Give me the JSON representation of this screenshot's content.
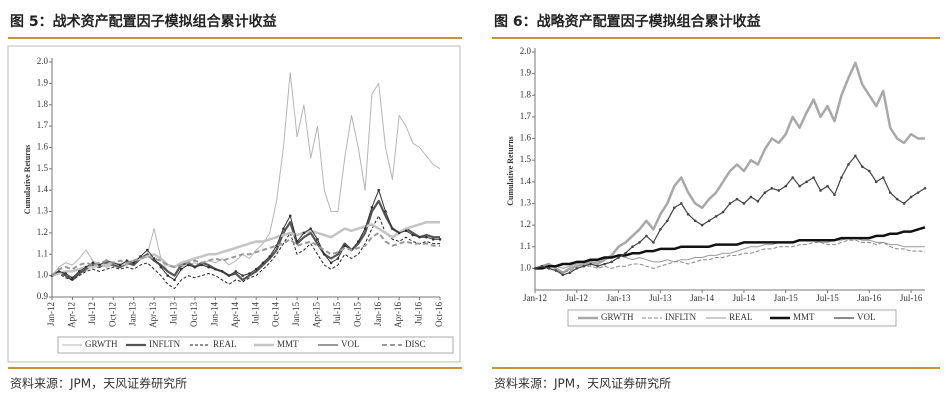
{
  "chart_data": [
    {
      "type": "line",
      "title": "图 5：战术资产配置因子模拟组合累计收益",
      "source": "资料来源：JPM，天风证券研究所",
      "y_label": "Cumulative Returns",
      "categories": [
        "Jan-12",
        null,
        null,
        "Apr-12",
        null,
        null,
        "Jul-12",
        null,
        null,
        "Oct-12",
        null,
        null,
        "Jan-13",
        null,
        null,
        "Apr-13",
        null,
        null,
        "Jul-13",
        null,
        null,
        "Oct-13",
        null,
        null,
        "Jan-14",
        null,
        null,
        "Apr-14",
        null,
        null,
        "Jul-14",
        null,
        null,
        "Oct-14",
        null,
        null,
        "Jan-15",
        null,
        null,
        "Apr-15",
        null,
        null,
        "Jul-15",
        null,
        null,
        "Oct-15",
        null,
        null,
        "Jan-16",
        null,
        null,
        "Apr-16",
        null,
        null,
        "Jul-16",
        null,
        null,
        "Oct-16"
      ],
      "ylim": [
        0.9,
        2.0
      ],
      "yticks": [
        0.9,
        {
          "value": 1.0,
          "label": "1.0"
        },
        1.1,
        1.2,
        1.3,
        1.4,
        1.5,
        1.6,
        1.7,
        1.8,
        1.9,
        {
          "value": 2.0,
          "label": "2.0"
        }
      ],
      "series": [
        {
          "name": "GRWTH",
          "color": "#b5b5b5",
          "width": 1,
          "dash": "none",
          "values": [
            1.0,
            1.04,
            1.06,
            1.05,
            1.08,
            1.12,
            1.07,
            1.05,
            1.04,
            1.05,
            1.04,
            1.05,
            1.06,
            1.08,
            1.1,
            1.22,
            1.08,
            1.02,
            1.0,
            1.04,
            1.05,
            1.06,
            1.05,
            1.07,
            1.06,
            1.08,
            1.05,
            1.07,
            1.1,
            1.08,
            1.12,
            1.15,
            1.2,
            1.35,
            1.6,
            1.95,
            1.65,
            1.8,
            1.55,
            1.7,
            1.4,
            1.3,
            1.3,
            1.55,
            1.75,
            1.6,
            1.4,
            1.85,
            1.9,
            1.6,
            1.45,
            1.75,
            1.7,
            1.62,
            1.6,
            1.56,
            1.52,
            1.5
          ]
        },
        {
          "name": "INFLTN",
          "color": "#555555",
          "width": 2.2,
          "dash": "none",
          "values": [
            1.0,
            1.02,
            1.0,
            0.98,
            1.01,
            1.03,
            1.05,
            1.04,
            1.06,
            1.05,
            1.04,
            1.06,
            1.05,
            1.08,
            1.1,
            1.07,
            1.05,
            1.02,
            1.0,
            1.05,
            1.06,
            1.04,
            1.06,
            1.05,
            1.03,
            1.02,
            1.0,
            1.01,
            0.98,
            1.0,
            1.02,
            1.05,
            1.08,
            1.12,
            1.2,
            1.25,
            1.15,
            1.18,
            1.2,
            1.15,
            1.1,
            1.08,
            1.1,
            1.15,
            1.12,
            1.15,
            1.2,
            1.3,
            1.35,
            1.28,
            1.22,
            1.2,
            1.22,
            1.2,
            1.18,
            1.19,
            1.18,
            1.18
          ]
        },
        {
          "name": "REAL",
          "color": "#222222",
          "width": 1,
          "dash": "3,2",
          "values": [
            1.0,
            1.01,
            0.99,
            0.98,
            1.0,
            1.02,
            1.03,
            1.02,
            1.03,
            1.04,
            1.03,
            1.04,
            1.03,
            1.05,
            1.06,
            1.03,
            1.0,
            0.96,
            0.94,
            0.98,
            1.0,
            0.99,
            1.0,
            1.01,
            1.0,
            0.98,
            0.96,
            0.98,
            0.97,
            0.99,
            1.0,
            1.03,
            1.06,
            1.1,
            1.15,
            1.2,
            1.1,
            1.12,
            1.15,
            1.1,
            1.05,
            1.03,
            1.05,
            1.1,
            1.08,
            1.1,
            1.15,
            1.22,
            1.28,
            1.2,
            1.17,
            1.16,
            1.18,
            1.16,
            1.15,
            1.16,
            1.15,
            1.15
          ]
        },
        {
          "name": "MMT",
          "color": "#c4c4c4",
          "width": 2.5,
          "dash": "none",
          "values": [
            1.0,
            1.01,
            1.02,
            1.02,
            1.03,
            1.04,
            1.04,
            1.05,
            1.05,
            1.06,
            1.05,
            1.06,
            1.07,
            1.08,
            1.09,
            1.1,
            1.08,
            1.05,
            1.04,
            1.06,
            1.07,
            1.08,
            1.09,
            1.1,
            1.1,
            1.11,
            1.12,
            1.13,
            1.14,
            1.15,
            1.16,
            1.16,
            1.17,
            1.18,
            1.19,
            1.2,
            1.19,
            1.2,
            1.21,
            1.2,
            1.19,
            1.18,
            1.2,
            1.22,
            1.21,
            1.22,
            1.23,
            1.24,
            1.22,
            1.2,
            1.18,
            1.2,
            1.22,
            1.23,
            1.24,
            1.25,
            1.25,
            1.25
          ]
        },
        {
          "name": "VOL",
          "color": "#333333",
          "width": 1,
          "dash": "none",
          "marker": true,
          "values": [
            1.0,
            1.02,
            1.01,
            0.99,
            1.02,
            1.04,
            1.06,
            1.05,
            1.07,
            1.06,
            1.05,
            1.07,
            1.06,
            1.09,
            1.12,
            1.08,
            1.04,
            1.0,
            0.98,
            1.03,
            1.05,
            1.04,
            1.05,
            1.04,
            1.03,
            1.02,
            1.0,
            1.02,
            1.0,
            1.01,
            1.03,
            1.06,
            1.09,
            1.14,
            1.22,
            1.28,
            1.16,
            1.2,
            1.22,
            1.17,
            1.1,
            1.06,
            1.08,
            1.14,
            1.12,
            1.16,
            1.22,
            1.32,
            1.4,
            1.3,
            1.22,
            1.2,
            1.21,
            1.19,
            1.18,
            1.18,
            1.17,
            1.17
          ]
        },
        {
          "name": "DISC",
          "color": "#999999",
          "width": 2,
          "dash": "5,3",
          "values": [
            1.0,
            1.03,
            1.04,
            1.03,
            1.05,
            1.06,
            1.05,
            1.06,
            1.07,
            1.06,
            1.07,
            1.06,
            1.07,
            1.08,
            1.09,
            1.08,
            1.07,
            1.05,
            1.04,
            1.05,
            1.06,
            1.07,
            1.06,
            1.07,
            1.08,
            1.07,
            1.08,
            1.09,
            1.1,
            1.1,
            1.11,
            1.12,
            1.13,
            1.14,
            1.15,
            1.17,
            1.14,
            1.15,
            1.16,
            1.14,
            1.12,
            1.1,
            1.11,
            1.13,
            1.12,
            1.13,
            1.14,
            1.18,
            1.2,
            1.16,
            1.14,
            1.15,
            1.16,
            1.15,
            1.15,
            1.15,
            1.14,
            1.14
          ]
        }
      ]
    },
    {
      "type": "line",
      "title": "图 6：战略资产配置因子模拟组合累计收益",
      "source": "资料来源：JPM，天风证券研究所",
      "y_label": "Cumulative Returns",
      "categories": [
        "Jan-12",
        null,
        null,
        null,
        null,
        null,
        "Jul-12",
        null,
        null,
        null,
        null,
        null,
        "Jan-13",
        null,
        null,
        null,
        null,
        null,
        "Jul-13",
        null,
        null,
        null,
        null,
        null,
        "Jan-14",
        null,
        null,
        null,
        null,
        null,
        "Jul-14",
        null,
        null,
        null,
        null,
        null,
        "Jan-15",
        null,
        null,
        null,
        null,
        null,
        "Jul-15",
        null,
        null,
        null,
        null,
        null,
        "Jan-16",
        null,
        null,
        null,
        null,
        null,
        "Jul-16",
        null,
        null
      ],
      "ylim": [
        0.9,
        2.0
      ],
      "yticks": [
        {
          "value": 1.0,
          "label": "1.0"
        },
        1.1,
        1.2,
        1.3,
        1.4,
        1.5,
        1.6,
        1.7,
        1.8,
        1.9,
        {
          "value": 2.0,
          "label": "2.0"
        }
      ],
      "series": [
        {
          "name": "GRWTH",
          "color": "#a8a8a8",
          "width": 2.5,
          "dash": "none",
          "values": [
            1.0,
            1.01,
            1.02,
            1.0,
            0.98,
            1.0,
            1.01,
            1.02,
            1.03,
            1.02,
            1.04,
            1.06,
            1.1,
            1.12,
            1.15,
            1.18,
            1.22,
            1.18,
            1.25,
            1.3,
            1.38,
            1.42,
            1.35,
            1.3,
            1.28,
            1.32,
            1.35,
            1.4,
            1.45,
            1.48,
            1.45,
            1.5,
            1.48,
            1.55,
            1.6,
            1.58,
            1.62,
            1.7,
            1.65,
            1.72,
            1.78,
            1.7,
            1.75,
            1.68,
            1.8,
            1.88,
            1.95,
            1.85,
            1.8,
            1.75,
            1.82,
            1.65,
            1.6,
            1.58,
            1.62,
            1.6,
            1.6
          ]
        },
        {
          "name": "INFLTN",
          "color": "#888888",
          "width": 1,
          "dash": "4,2",
          "values": [
            1.0,
            1.0,
            1.0,
            0.99,
            0.98,
            0.99,
            1.0,
            1.01,
            1.01,
            1.0,
            1.01,
            1.0,
            1.01,
            1.01,
            1.02,
            1.02,
            1.01,
            1.0,
            1.01,
            1.02,
            1.03,
            1.03,
            1.02,
            1.03,
            1.04,
            1.04,
            1.05,
            1.05,
            1.06,
            1.06,
            1.07,
            1.07,
            1.08,
            1.09,
            1.09,
            1.1,
            1.1,
            1.1,
            1.11,
            1.11,
            1.12,
            1.12,
            1.11,
            1.11,
            1.12,
            1.13,
            1.13,
            1.12,
            1.12,
            1.11,
            1.12,
            1.1,
            1.09,
            1.09,
            1.08,
            1.08,
            1.08
          ]
        },
        {
          "name": "REAL",
          "color": "#999999",
          "width": 1,
          "dash": "none",
          "values": [
            1.0,
            1.01,
            1.02,
            1.01,
            1.0,
            1.01,
            1.02,
            1.03,
            1.04,
            1.03,
            1.04,
            1.05,
            1.06,
            1.05,
            1.04,
            1.05,
            1.04,
            1.03,
            1.03,
            1.04,
            1.03,
            1.04,
            1.04,
            1.05,
            1.05,
            1.06,
            1.06,
            1.07,
            1.07,
            1.08,
            1.09,
            1.1,
            1.1,
            1.11,
            1.11,
            1.12,
            1.12,
            1.12,
            1.13,
            1.13,
            1.13,
            1.12,
            1.12,
            1.13,
            1.13,
            1.14,
            1.14,
            1.13,
            1.13,
            1.12,
            1.12,
            1.11,
            1.11,
            1.1,
            1.1,
            1.1,
            1.1
          ]
        },
        {
          "name": "MMT",
          "color": "#111111",
          "width": 2.5,
          "dash": "none",
          "values": [
            1.0,
            1.0,
            1.01,
            1.01,
            1.02,
            1.02,
            1.03,
            1.03,
            1.04,
            1.04,
            1.05,
            1.05,
            1.06,
            1.06,
            1.07,
            1.07,
            1.08,
            1.08,
            1.09,
            1.09,
            1.09,
            1.1,
            1.1,
            1.1,
            1.1,
            1.1,
            1.11,
            1.11,
            1.11,
            1.11,
            1.12,
            1.12,
            1.12,
            1.12,
            1.12,
            1.12,
            1.12,
            1.12,
            1.13,
            1.13,
            1.13,
            1.13,
            1.13,
            1.13,
            1.14,
            1.14,
            1.14,
            1.14,
            1.14,
            1.15,
            1.15,
            1.16,
            1.16,
            1.17,
            1.17,
            1.18,
            1.19
          ]
        },
        {
          "name": "VOL",
          "color": "#444444",
          "width": 1.2,
          "dash": "none",
          "marker": true,
          "values": [
            1.0,
            1.01,
            1.0,
            0.99,
            0.97,
            0.98,
            1.0,
            1.01,
            1.02,
            1.01,
            1.02,
            1.03,
            1.05,
            1.07,
            1.1,
            1.12,
            1.15,
            1.12,
            1.18,
            1.22,
            1.28,
            1.3,
            1.25,
            1.22,
            1.2,
            1.22,
            1.24,
            1.26,
            1.3,
            1.32,
            1.3,
            1.33,
            1.31,
            1.35,
            1.37,
            1.36,
            1.38,
            1.42,
            1.38,
            1.4,
            1.42,
            1.36,
            1.38,
            1.34,
            1.42,
            1.48,
            1.52,
            1.47,
            1.45,
            1.4,
            1.42,
            1.35,
            1.32,
            1.3,
            1.33,
            1.35,
            1.37
          ]
        }
      ]
    }
  ]
}
